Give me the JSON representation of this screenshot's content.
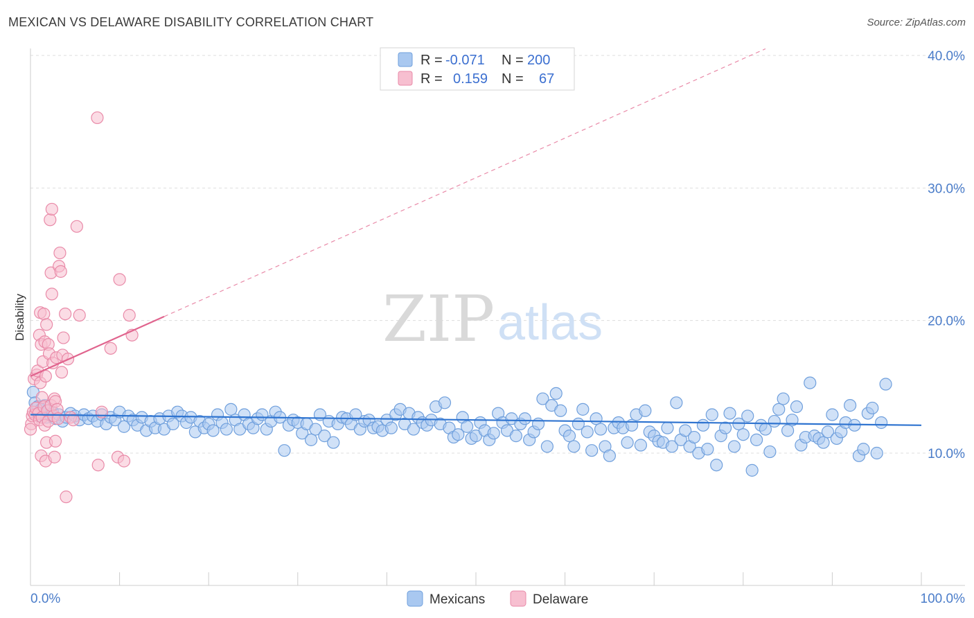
{
  "title": "MEXICAN VS DELAWARE DISABILITY CORRELATION CHART",
  "source": "Source: ZipAtlas.com",
  "watermark": {
    "part1": "ZIP",
    "part2": "atlas"
  },
  "colors": {
    "blue_fill": "#a9c8f0",
    "blue_stroke": "#6f9fdc",
    "blue_line": "#2f74d0",
    "pink_fill": "#f7bfd0",
    "pink_stroke": "#e98aa8",
    "pink_line": "#e0638d",
    "axis_text": "#4a7cc9",
    "grid": "#dddddd"
  },
  "legend": {
    "rows": [
      {
        "r_label": "R =",
        "r_value": "-0.071",
        "n_label": "N =",
        "n_value": "200"
      },
      {
        "r_label": "R =",
        "r_value": "0.159",
        "n_label": "N =",
        "n_value": "67"
      }
    ]
  },
  "bottom_legend": [
    "Mexicans",
    "Delaware"
  ],
  "chart_data": {
    "type": "scatter",
    "title": "MEXICAN VS DELAWARE DISABILITY CORRELATION CHART",
    "xlabel": "",
    "ylabel": "Disability",
    "xlim": [
      0,
      100
    ],
    "ylim": [
      0,
      42
    ],
    "x_tick_labels": [
      "0.0%",
      "100.0%"
    ],
    "y_ticks": [
      10,
      20,
      30,
      40
    ],
    "y_tick_labels": [
      "10.0%",
      "20.0%",
      "30.0%",
      "40.0%"
    ],
    "grid": true,
    "legend_position": "top-center",
    "series": [
      {
        "name": "Mexicans",
        "r": -0.071,
        "n": 200,
        "trend": {
          "x": [
            0,
            100
          ],
          "y": [
            12.9,
            12.1
          ],
          "style": "solid"
        },
        "points": [
          [
            0.3,
            14.6
          ],
          [
            0.5,
            13.8
          ],
          [
            0.6,
            13.1
          ],
          [
            0.8,
            13.5
          ],
          [
            1.0,
            12.8
          ],
          [
            1.2,
            13.3
          ],
          [
            1.4,
            12.9
          ],
          [
            1.6,
            13.6
          ],
          [
            1.8,
            12.7
          ],
          [
            2.0,
            13.2
          ],
          [
            2.2,
            12.9
          ],
          [
            2.5,
            13.1
          ],
          [
            2.8,
            12.6
          ],
          [
            3.2,
            12.9
          ],
          [
            3.6,
            12.4
          ],
          [
            4.0,
            12.7
          ],
          [
            4.5,
            13.0
          ],
          [
            5.0,
            12.8
          ],
          [
            5.5,
            12.5
          ],
          [
            6.0,
            12.9
          ],
          [
            6.5,
            12.6
          ],
          [
            7.0,
            12.8
          ],
          [
            7.5,
            12.4
          ],
          [
            8.0,
            12.9
          ],
          [
            8.5,
            12.2
          ],
          [
            9.0,
            12.7
          ],
          [
            9.5,
            12.5
          ],
          [
            10.0,
            13.1
          ],
          [
            10.5,
            12.0
          ],
          [
            11.0,
            12.8
          ],
          [
            11.5,
            12.5
          ],
          [
            12.0,
            12.1
          ],
          [
            12.5,
            12.7
          ],
          [
            13.0,
            11.7
          ],
          [
            13.5,
            12.4
          ],
          [
            14.0,
            11.9
          ],
          [
            14.5,
            12.6
          ],
          [
            15.0,
            11.8
          ],
          [
            15.5,
            12.8
          ],
          [
            16.0,
            12.2
          ],
          [
            16.5,
            13.1
          ],
          [
            17.0,
            12.8
          ],
          [
            17.5,
            12.3
          ],
          [
            18.0,
            12.7
          ],
          [
            18.5,
            11.6
          ],
          [
            19.0,
            12.4
          ],
          [
            19.5,
            11.9
          ],
          [
            20.0,
            12.2
          ],
          [
            20.5,
            11.7
          ],
          [
            21.0,
            12.9
          ],
          [
            21.5,
            12.3
          ],
          [
            22.0,
            11.8
          ],
          [
            22.5,
            13.3
          ],
          [
            23.0,
            12.5
          ],
          [
            23.5,
            11.8
          ],
          [
            24.0,
            12.9
          ],
          [
            24.5,
            12.2
          ],
          [
            25.0,
            11.9
          ],
          [
            25.5,
            12.6
          ],
          [
            26.0,
            12.9
          ],
          [
            26.5,
            11.8
          ],
          [
            27.0,
            12.4
          ],
          [
            27.5,
            13.1
          ],
          [
            28.0,
            12.7
          ],
          [
            28.5,
            10.2
          ],
          [
            29.0,
            12.1
          ],
          [
            29.5,
            12.5
          ],
          [
            30.0,
            12.3
          ],
          [
            30.5,
            11.5
          ],
          [
            31.0,
            12.2
          ],
          [
            31.5,
            11.0
          ],
          [
            32.0,
            11.8
          ],
          [
            32.5,
            12.9
          ],
          [
            33.0,
            11.3
          ],
          [
            33.5,
            12.4
          ],
          [
            34.0,
            10.8
          ],
          [
            34.5,
            12.2
          ],
          [
            35.0,
            12.7
          ],
          [
            35.5,
            12.6
          ],
          [
            36.0,
            12.2
          ],
          [
            36.5,
            12.9
          ],
          [
            37.0,
            11.8
          ],
          [
            37.5,
            12.4
          ],
          [
            38.0,
            12.5
          ],
          [
            38.5,
            11.9
          ],
          [
            39.0,
            12.0
          ],
          [
            39.5,
            11.7
          ],
          [
            40.0,
            12.5
          ],
          [
            40.5,
            11.9
          ],
          [
            41.0,
            12.9
          ],
          [
            41.5,
            13.3
          ],
          [
            42.0,
            12.2
          ],
          [
            42.5,
            13.0
          ],
          [
            43.0,
            11.8
          ],
          [
            43.5,
            12.7
          ],
          [
            44.0,
            12.3
          ],
          [
            44.5,
            12.1
          ],
          [
            45.0,
            12.5
          ],
          [
            45.5,
            13.5
          ],
          [
            46.0,
            12.2
          ],
          [
            46.5,
            13.8
          ],
          [
            47.0,
            11.9
          ],
          [
            47.5,
            11.2
          ],
          [
            48.0,
            11.4
          ],
          [
            48.5,
            12.7
          ],
          [
            49.0,
            12.0
          ],
          [
            49.5,
            11.1
          ],
          [
            50.0,
            11.3
          ],
          [
            50.5,
            12.3
          ],
          [
            51.0,
            11.7
          ],
          [
            51.5,
            11.0
          ],
          [
            52.0,
            11.5
          ],
          [
            52.5,
            13.0
          ],
          [
            53.0,
            12.3
          ],
          [
            53.5,
            11.7
          ],
          [
            54.0,
            12.6
          ],
          [
            54.5,
            11.3
          ],
          [
            55.0,
            12.2
          ],
          [
            55.5,
            12.6
          ],
          [
            56.0,
            11.0
          ],
          [
            56.5,
            11.6
          ],
          [
            57.0,
            12.2
          ],
          [
            57.5,
            14.1
          ],
          [
            58.0,
            10.5
          ],
          [
            58.5,
            13.6
          ],
          [
            59.0,
            14.5
          ],
          [
            59.5,
            13.2
          ],
          [
            60.0,
            11.7
          ],
          [
            60.5,
            11.3
          ],
          [
            61.0,
            10.5
          ],
          [
            61.5,
            12.2
          ],
          [
            62.0,
            13.3
          ],
          [
            62.5,
            11.6
          ],
          [
            63.0,
            10.2
          ],
          [
            63.5,
            12.6
          ],
          [
            64.0,
            11.8
          ],
          [
            64.5,
            10.5
          ],
          [
            65.0,
            9.8
          ],
          [
            65.5,
            11.9
          ],
          [
            66.0,
            12.3
          ],
          [
            66.5,
            11.9
          ],
          [
            67.0,
            10.8
          ],
          [
            67.5,
            12.1
          ],
          [
            68.0,
            12.9
          ],
          [
            68.5,
            10.6
          ],
          [
            69.0,
            13.2
          ],
          [
            69.5,
            11.6
          ],
          [
            70.0,
            11.3
          ],
          [
            70.5,
            10.9
          ],
          [
            71.0,
            10.8
          ],
          [
            71.5,
            11.9
          ],
          [
            72.0,
            10.5
          ],
          [
            72.5,
            13.8
          ],
          [
            73.0,
            11.0
          ],
          [
            73.5,
            11.7
          ],
          [
            74.0,
            10.5
          ],
          [
            74.5,
            11.2
          ],
          [
            75.0,
            10.0
          ],
          [
            75.5,
            12.1
          ],
          [
            76.0,
            10.3
          ],
          [
            76.5,
            12.9
          ],
          [
            77.0,
            9.1
          ],
          [
            77.5,
            11.3
          ],
          [
            78.0,
            11.9
          ],
          [
            78.5,
            13.0
          ],
          [
            79.0,
            10.5
          ],
          [
            79.5,
            12.2
          ],
          [
            80.0,
            11.4
          ],
          [
            80.5,
            12.8
          ],
          [
            81.0,
            8.7
          ],
          [
            81.5,
            11.0
          ],
          [
            82.0,
            12.1
          ],
          [
            82.5,
            11.8
          ],
          [
            83.0,
            10.1
          ],
          [
            83.5,
            12.4
          ],
          [
            84.0,
            13.3
          ],
          [
            84.5,
            14.1
          ],
          [
            85.0,
            11.7
          ],
          [
            85.5,
            12.5
          ],
          [
            86.0,
            13.5
          ],
          [
            86.5,
            10.6
          ],
          [
            87.0,
            11.2
          ],
          [
            87.5,
            15.3
          ],
          [
            88.0,
            11.3
          ],
          [
            88.5,
            11.1
          ],
          [
            89.0,
            10.8
          ],
          [
            89.5,
            11.6
          ],
          [
            90.0,
            12.9
          ],
          [
            90.5,
            11.1
          ],
          [
            91.0,
            11.6
          ],
          [
            91.5,
            12.3
          ],
          [
            92.0,
            13.6
          ],
          [
            92.5,
            12.1
          ],
          [
            93.0,
            9.8
          ],
          [
            93.5,
            10.3
          ],
          [
            94.0,
            13.0
          ],
          [
            94.5,
            13.4
          ],
          [
            95.0,
            10.0
          ],
          [
            95.5,
            12.3
          ],
          [
            96.0,
            15.2
          ]
        ]
      },
      {
        "name": "Delaware",
        "r": 0.159,
        "n": 67,
        "trend": {
          "x": [
            0,
            15
          ],
          "y": [
            15.8,
            20.3
          ],
          "style": "solid",
          "extension": {
            "x": [
              15,
              82.5
            ],
            "y": [
              20.3,
              40.5
            ],
            "style": "dashed"
          }
        },
        "points": [
          [
            0.1,
            12.2
          ],
          [
            0.2,
            12.8
          ],
          [
            0.3,
            13.1
          ],
          [
            0.4,
            15.6
          ],
          [
            0.5,
            12.9
          ],
          [
            0.6,
            13.4
          ],
          [
            0.7,
            15.9
          ],
          [
            0.8,
            16.2
          ],
          [
            0.9,
            13.0
          ],
          [
            1.0,
            12.5
          ],
          [
            1.0,
            18.9
          ],
          [
            1.1,
            15.3
          ],
          [
            1.1,
            20.6
          ],
          [
            1.2,
            18.2
          ],
          [
            1.2,
            9.8
          ],
          [
            1.3,
            12.7
          ],
          [
            1.3,
            14.2
          ],
          [
            1.4,
            16.9
          ],
          [
            1.5,
            13.5
          ],
          [
            1.5,
            20.5
          ],
          [
            1.6,
            12.1
          ],
          [
            1.6,
            18.4
          ],
          [
            1.7,
            9.4
          ],
          [
            1.7,
            15.8
          ],
          [
            1.8,
            19.7
          ],
          [
            1.8,
            10.8
          ],
          [
            1.9,
            13.2
          ],
          [
            2.0,
            18.2
          ],
          [
            2.0,
            12.4
          ],
          [
            2.1,
            17.5
          ],
          [
            2.2,
            27.6
          ],
          [
            2.3,
            23.6
          ],
          [
            2.3,
            13.6
          ],
          [
            2.4,
            28.4
          ],
          [
            2.4,
            22.0
          ],
          [
            2.5,
            16.8
          ],
          [
            2.6,
            12.8
          ],
          [
            2.7,
            14.1
          ],
          [
            2.7,
            9.7
          ],
          [
            2.8,
            13.9
          ],
          [
            2.8,
            10.9
          ],
          [
            2.9,
            17.2
          ],
          [
            3.0,
            13.3
          ],
          [
            3.1,
            12.6
          ],
          [
            3.2,
            24.1
          ],
          [
            3.3,
            25.1
          ],
          [
            3.4,
            23.7
          ],
          [
            3.5,
            16.1
          ],
          [
            3.6,
            17.4
          ],
          [
            3.7,
            18.7
          ],
          [
            3.9,
            20.5
          ],
          [
            4.0,
            6.7
          ],
          [
            4.2,
            17.1
          ],
          [
            4.5,
            12.7
          ],
          [
            4.8,
            12.5
          ],
          [
            5.2,
            27.1
          ],
          [
            5.5,
            20.4
          ],
          [
            7.5,
            35.3
          ],
          [
            7.6,
            9.1
          ],
          [
            8.0,
            13.1
          ],
          [
            9.0,
            17.9
          ],
          [
            9.8,
            9.7
          ],
          [
            10.0,
            23.1
          ],
          [
            10.5,
            9.4
          ],
          [
            11.1,
            20.4
          ],
          [
            11.4,
            18.9
          ],
          [
            0.0,
            11.8
          ]
        ]
      }
    ]
  }
}
